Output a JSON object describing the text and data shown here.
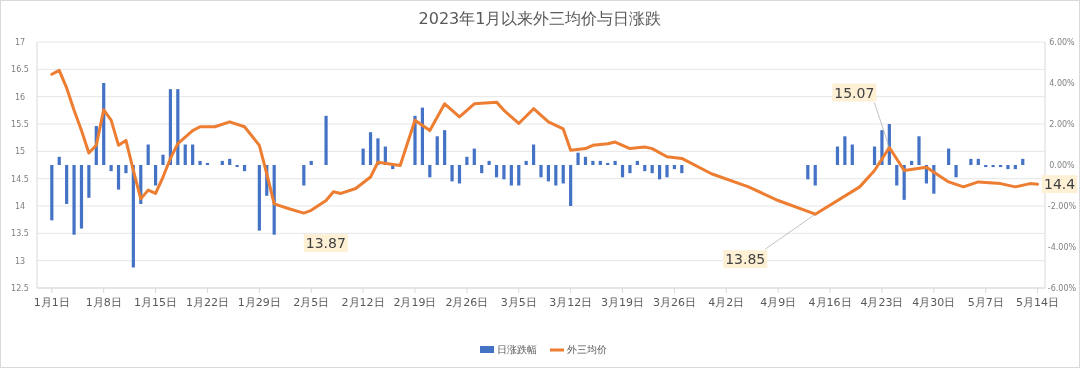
{
  "chart_data": {
    "type": "bar",
    "title": "2023年1月以来外三均价与日涨跌",
    "xlim": [
      "2022-12-30",
      "2023-05-15"
    ],
    "xticks": [
      {
        "value": "2023-01-01",
        "label": "1月1日"
      },
      {
        "value": "2023-01-08",
        "label": "1月8日"
      },
      {
        "value": "2023-01-15",
        "label": "1月15日"
      },
      {
        "value": "2023-01-22",
        "label": "1月22日"
      },
      {
        "value": "2023-01-29",
        "label": "1月29日"
      },
      {
        "value": "2023-02-05",
        "label": "2月5日"
      },
      {
        "value": "2023-02-12",
        "label": "2月12日"
      },
      {
        "value": "2023-02-19",
        "label": "2月19日"
      },
      {
        "value": "2023-02-26",
        "label": "2月26日"
      },
      {
        "value": "2023-03-05",
        "label": "3月5日"
      },
      {
        "value": "2023-03-12",
        "label": "3月12日"
      },
      {
        "value": "2023-03-19",
        "label": "3月19日"
      },
      {
        "value": "2023-03-26",
        "label": "3月26日"
      },
      {
        "value": "2023-04-02",
        "label": "4月2日"
      },
      {
        "value": "2023-04-09",
        "label": "4月9日"
      },
      {
        "value": "2023-04-16",
        "label": "4月16日"
      },
      {
        "value": "2023-04-23",
        "label": "4月23日"
      },
      {
        "value": "2023-04-30",
        "label": "4月30日"
      },
      {
        "value": "2023-05-07",
        "label": "5月7日"
      },
      {
        "value": "2023-05-14",
        "label": "5月14日"
      }
    ],
    "ylim": [
      12.5,
      17
    ],
    "yticks": [
      12.5,
      13,
      13.5,
      14,
      14.5,
      15,
      15.5,
      16,
      16.5,
      17
    ],
    "y2lim": [
      -6,
      6
    ],
    "y2ticks": [
      {
        "value": -6,
        "label": "-6.00%"
      },
      {
        "value": -4,
        "label": "-4.00%"
      },
      {
        "value": -2,
        "label": "-2.00%"
      },
      {
        "value": 0,
        "label": "0.00%"
      },
      {
        "value": 2,
        "label": "2.00%"
      },
      {
        "value": 4,
        "label": "4.00%"
      },
      {
        "value": 6,
        "label": "6.00%"
      }
    ],
    "grid": "y",
    "legend": "bottom",
    "series": [
      {
        "name": "日涨跌幅",
        "axis": "y2",
        "color": "#4472c4",
        "x": [
          "2023-01-01",
          "2023-01-02",
          "2023-01-03",
          "2023-01-04",
          "2023-01-05",
          "2023-01-06",
          "2023-01-07",
          "2023-01-08",
          "2023-01-09",
          "2023-01-10",
          "2023-01-11",
          "2023-01-12",
          "2023-01-13",
          "2023-01-14",
          "2023-01-15",
          "2023-01-16",
          "2023-01-17",
          "2023-01-18",
          "2023-01-19",
          "2023-01-20",
          "2023-01-21",
          "2023-01-22",
          "2023-01-24",
          "2023-01-25",
          "2023-01-26",
          "2023-01-27",
          "2023-01-29",
          "2023-01-30",
          "2023-01-31",
          "2023-02-04",
          "2023-02-05",
          "2023-02-07",
          "2023-02-12",
          "2023-02-13",
          "2023-02-14",
          "2023-02-15",
          "2023-02-16",
          "2023-02-19",
          "2023-02-20",
          "2023-02-21",
          "2023-02-22",
          "2023-02-23",
          "2023-02-24",
          "2023-02-25",
          "2023-02-26",
          "2023-02-27",
          "2023-02-28",
          "2023-03-01",
          "2023-03-02",
          "2023-03-03",
          "2023-03-04",
          "2023-03-05",
          "2023-03-06",
          "2023-03-07",
          "2023-03-08",
          "2023-03-09",
          "2023-03-10",
          "2023-03-11",
          "2023-03-12",
          "2023-03-13",
          "2023-03-14",
          "2023-03-15",
          "2023-03-16",
          "2023-03-17",
          "2023-03-18",
          "2023-03-19",
          "2023-03-20",
          "2023-03-21",
          "2023-03-22",
          "2023-03-23",
          "2023-03-24",
          "2023-03-25",
          "2023-03-26",
          "2023-03-27",
          "2023-04-13",
          "2023-04-14",
          "2023-04-17",
          "2023-04-18",
          "2023-04-19",
          "2023-04-22",
          "2023-04-23",
          "2023-04-24",
          "2023-04-25",
          "2023-04-26",
          "2023-04-27",
          "2023-04-28",
          "2023-04-29",
          "2023-04-30",
          "2023-05-02",
          "2023-05-03",
          "2023-05-05",
          "2023-05-06",
          "2023-05-07",
          "2023-05-08",
          "2023-05-09",
          "2023-05-10",
          "2023-05-11",
          "2023-05-12"
        ],
        "values": [
          -2.7,
          0.4,
          -1.9,
          -3.4,
          -3.1,
          -1.6,
          1.9,
          4.0,
          -0.3,
          -1.2,
          -0.4,
          -5.0,
          -1.9,
          1.0,
          -1.0,
          0.5,
          3.7,
          3.7,
          1.0,
          1.0,
          0.2,
          0.1,
          0.2,
          0.3,
          -0.1,
          -0.3,
          -3.2,
          -1.5,
          -3.4,
          -1.0,
          0.2,
          2.4,
          0.8,
          1.6,
          1.3,
          0.9,
          -0.2,
          2.4,
          2.8,
          -0.6,
          1.4,
          1.7,
          -0.8,
          -0.9,
          0.4,
          0.8,
          -0.4,
          0.2,
          -0.6,
          -0.7,
          -1.0,
          -1.0,
          0.2,
          1.0,
          -0.6,
          -0.8,
          -1.0,
          -0.9,
          -2.0,
          0.6,
          0.4,
          0.2,
          0.2,
          0.1,
          0.2,
          -0.6,
          -0.4,
          0.2,
          -0.3,
          -0.4,
          -0.7,
          -0.6,
          -0.2,
          -0.4,
          -0.7,
          -1.0,
          0.9,
          1.4,
          1.0,
          0.9,
          1.7,
          2.0,
          -1.0,
          -1.7,
          0.2,
          1.4,
          -0.9,
          -1.4,
          0.8,
          -0.6,
          0.3,
          0.3,
          -0.1,
          -0.1,
          -0.1,
          -0.2,
          -0.2,
          0.3
        ]
      },
      {
        "name": "外三均价",
        "type": "line",
        "color": "#ed7d31",
        "x": [
          "2023-01-01",
          "2023-01-02",
          "2023-01-03",
          "2023-01-04",
          "2023-01-05",
          "2023-01-06",
          "2023-01-07",
          "2023-01-08",
          "2023-01-09",
          "2023-01-10",
          "2023-01-11",
          "2023-01-12",
          "2023-01-13",
          "2023-01-14",
          "2023-01-15",
          "2023-01-16",
          "2023-01-17",
          "2023-01-18",
          "2023-01-20",
          "2023-01-21",
          "2023-01-23",
          "2023-01-25",
          "2023-01-27",
          "2023-01-29",
          "2023-01-30",
          "2023-01-31",
          "2023-02-02",
          "2023-02-04",
          "2023-02-05",
          "2023-02-07",
          "2023-02-08",
          "2023-02-09",
          "2023-02-11",
          "2023-02-13",
          "2023-02-14",
          "2023-02-17",
          "2023-02-19",
          "2023-02-21",
          "2023-02-23",
          "2023-02-25",
          "2023-02-27",
          "2023-03-02",
          "2023-03-03",
          "2023-03-05",
          "2023-03-07",
          "2023-03-09",
          "2023-03-11",
          "2023-03-12",
          "2023-03-14",
          "2023-03-15",
          "2023-03-17",
          "2023-03-18",
          "2023-03-20",
          "2023-03-22",
          "2023-03-23",
          "2023-03-25",
          "2023-03-27",
          "2023-03-31",
          "2023-04-05",
          "2023-04-09",
          "2023-04-14",
          "2023-04-20",
          "2023-04-22",
          "2023-04-24",
          "2023-04-26",
          "2023-04-29",
          "2023-05-02",
          "2023-05-04",
          "2023-05-06",
          "2023-05-09",
          "2023-05-11",
          "2023-05-13",
          "2023-05-14"
        ],
        "values": [
          16.41,
          16.48,
          16.16,
          15.75,
          15.38,
          14.97,
          15.11,
          15.76,
          15.57,
          15.11,
          15.2,
          14.65,
          14.13,
          14.29,
          14.23,
          14.53,
          14.87,
          15.14,
          15.38,
          15.45,
          15.45,
          15.54,
          15.45,
          15.11,
          14.59,
          14.04,
          13.95,
          13.87,
          13.92,
          14.1,
          14.26,
          14.23,
          14.32,
          14.53,
          14.8,
          14.74,
          15.57,
          15.38,
          15.87,
          15.63,
          15.87,
          15.9,
          15.75,
          15.51,
          15.78,
          15.54,
          15.41,
          15.02,
          15.05,
          15.11,
          15.14,
          15.17,
          15.05,
          15.08,
          15.05,
          14.9,
          14.87,
          14.59,
          14.35,
          14.1,
          13.85,
          14.35,
          14.65,
          15.07,
          14.65,
          14.71,
          14.44,
          14.35,
          14.44,
          14.41,
          14.35,
          14.41,
          14.4
        ]
      }
    ],
    "annotations": [
      {
        "text": "13.87",
        "x": "2023-02-04",
        "y": 13.87
      },
      {
        "text": "13.85",
        "x": "2023-04-14",
        "y": 13.85
      },
      {
        "text": "15.07",
        "x": "2023-04-24",
        "y": 15.07
      },
      {
        "text": "14.4",
        "x": "2023-05-14",
        "y": 14.4
      }
    ]
  }
}
